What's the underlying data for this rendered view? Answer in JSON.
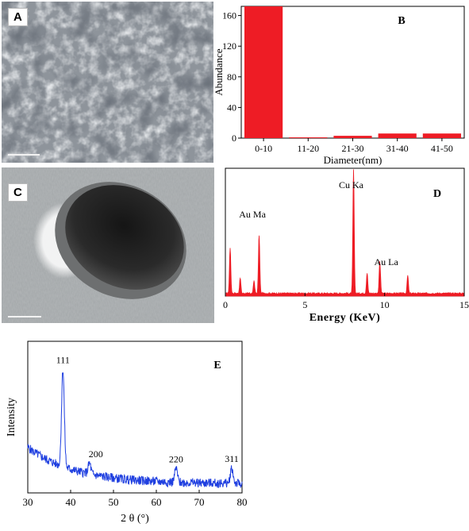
{
  "panels": {
    "A": {
      "label": "A"
    },
    "C": {
      "label": "C"
    }
  },
  "chart_data": [
    {
      "type": "bar",
      "panel_label": "B",
      "categories": [
        "0-10",
        "11-20",
        "21-30",
        "31-40",
        "41-50"
      ],
      "values": [
        172,
        1,
        3,
        6,
        6
      ],
      "xlabel": "Diameter(nm)",
      "ylabel": "Abundance",
      "ylim": [
        0,
        172
      ],
      "yticks": [
        0,
        40,
        80,
        120,
        160
      ],
      "color": "#ee1c25"
    },
    {
      "type": "line",
      "panel_label": "D",
      "xlabel": "Energy (KeV)",
      "xlim": [
        0,
        15
      ],
      "xticks": [
        0,
        5,
        10,
        15
      ],
      "color": "#ee1c25",
      "peaks": [
        {
          "x": 0.3,
          "h": 0.36
        },
        {
          "x": 0.93,
          "h": 0.12
        },
        {
          "x": 1.8,
          "h": 0.1
        },
        {
          "x": 2.12,
          "h": 0.46
        },
        {
          "x": 8.05,
          "h": 0.97
        },
        {
          "x": 8.9,
          "h": 0.16
        },
        {
          "x": 9.7,
          "h": 0.25
        },
        {
          "x": 11.45,
          "h": 0.14
        }
      ],
      "annotations": [
        {
          "text": "Au Ma",
          "x": 1.7
        },
        {
          "text": "Cu Ka",
          "x": 7.9
        },
        {
          "text": "Au La",
          "x": 10.1
        }
      ]
    },
    {
      "type": "line",
      "panel_label": "E",
      "xlabel": "2 θ (°)",
      "ylabel": "Intensity",
      "xlim": [
        30,
        80
      ],
      "xticks": [
        30,
        40,
        50,
        60,
        70,
        80
      ],
      "color": "#1f3fe0",
      "peaks": [
        {
          "x": 38.2,
          "h": 0.64,
          "label": "111"
        },
        {
          "x": 44.4,
          "h": 0.07,
          "label": "200"
        },
        {
          "x": 64.6,
          "h": 0.09,
          "label": "220"
        },
        {
          "x": 77.6,
          "h": 0.1,
          "label": "311"
        }
      ]
    }
  ]
}
